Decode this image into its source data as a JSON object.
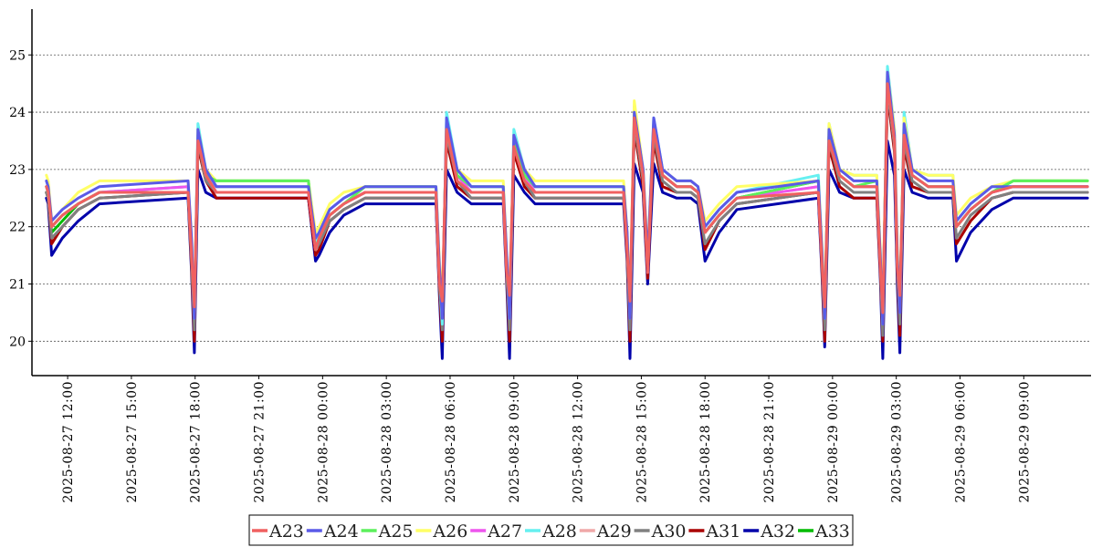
{
  "chart_data": {
    "type": "line",
    "title": "",
    "xlabel": "",
    "ylabel": "",
    "grid": {
      "y": true,
      "x": false,
      "style": "dotted"
    },
    "legend_position": "bottom",
    "ylim": [
      19.4,
      25.8
    ],
    "yticks": [
      20,
      21,
      22,
      23,
      24,
      25
    ],
    "xlim": [
      "2025-08-27 10:45",
      "2025-08-29 12:10"
    ],
    "xticks": [
      "2025-08-27  12:00",
      "2025-08-27  15:00",
      "2025-08-27  18:00",
      "2025-08-27  21:00",
      "2025-08-28  00:00",
      "2025-08-28  03:00",
      "2025-08-28  06:00",
      "2025-08-28  09:00",
      "2025-08-28  12:00",
      "2025-08-28  15:00",
      "2025-08-28  18:00",
      "2025-08-28  21:00",
      "2025-08-29  00:00",
      "2025-08-29  03:00",
      "2025-08-29  06:00",
      "2025-08-29  09:00"
    ],
    "x": [
      "2025-08-27 11:00",
      "2025-08-27 11:05",
      "2025-08-27 11:15",
      "2025-08-27 11:45",
      "2025-08-27 12:30",
      "2025-08-27 13:30",
      "2025-08-27 17:40",
      "2025-08-27 17:50",
      "2025-08-27 17:58",
      "2025-08-27 18:08",
      "2025-08-27 18:30",
      "2025-08-27 19:00",
      "2025-08-27 23:20",
      "2025-08-27 23:40",
      "2025-08-27 23:50",
      "2025-08-28 00:20",
      "2025-08-28 01:00",
      "2025-08-28 02:00",
      "2025-08-28 05:20",
      "2025-08-28 05:30",
      "2025-08-28 05:38",
      "2025-08-28 05:50",
      "2025-08-28 06:20",
      "2025-08-28 07:00",
      "2025-08-28 08:30",
      "2025-08-28 08:40",
      "2025-08-28 08:48",
      "2025-08-28 09:00",
      "2025-08-28 09:30",
      "2025-08-28 10:00",
      "2025-08-28 14:10",
      "2025-08-28 14:20",
      "2025-08-28 14:28",
      "2025-08-28 14:40",
      "2025-08-28 15:05",
      "2025-08-28 15:18",
      "2025-08-28 15:35",
      "2025-08-28 16:00",
      "2025-08-28 16:40",
      "2025-08-28 17:20",
      "2025-08-28 17:40",
      "2025-08-28 18:00",
      "2025-08-28 18:40",
      "2025-08-28 19:30",
      "2025-08-28 23:20",
      "2025-08-28 23:30",
      "2025-08-28 23:38",
      "2025-08-28 23:50",
      "2025-08-29 00:20",
      "2025-08-29 01:00",
      "2025-08-29 02:05",
      "2025-08-29 02:15",
      "2025-08-29 02:22",
      "2025-08-29 02:35",
      "2025-08-29 02:55",
      "2025-08-29 03:03",
      "2025-08-29 03:10",
      "2025-08-29 03:22",
      "2025-08-29 03:45",
      "2025-08-29 04:30",
      "2025-08-29 05:40",
      "2025-08-29 05:50",
      "2025-08-29 06:30",
      "2025-08-29 07:30",
      "2025-08-29 08:30",
      "2025-08-29 12:00"
    ],
    "series": [
      {
        "name": "A23",
        "color": "#f06060",
        "values": [
          22.7,
          22.6,
          22.0,
          22.2,
          22.4,
          22.6,
          22.6,
          21.5,
          20.6,
          23.5,
          22.9,
          22.6,
          22.6,
          21.6,
          21.8,
          22.2,
          22.4,
          22.6,
          22.6,
          21.0,
          20.7,
          23.7,
          22.8,
          22.6,
          22.6,
          21.2,
          20.8,
          23.4,
          22.8,
          22.6,
          22.6,
          21.6,
          20.7,
          23.9,
          22.9,
          21.2,
          23.7,
          22.9,
          22.7,
          22.7,
          22.6,
          21.9,
          22.2,
          22.5,
          22.6,
          21.4,
          20.6,
          23.5,
          22.9,
          22.7,
          22.7,
          21.3,
          20.5,
          24.5,
          23.5,
          21.3,
          20.8,
          23.6,
          22.9,
          22.7,
          22.7,
          22.0,
          22.3,
          22.6,
          22.7,
          22.7
        ]
      },
      {
        "name": "A24",
        "color": "#5a5ae8",
        "values": [
          22.8,
          22.7,
          22.1,
          22.3,
          22.5,
          22.7,
          22.8,
          21.8,
          20.4,
          23.7,
          23.0,
          22.7,
          22.7,
          21.8,
          21.9,
          22.3,
          22.5,
          22.7,
          22.7,
          21.3,
          20.4,
          23.9,
          23.0,
          22.7,
          22.7,
          21.5,
          20.4,
          23.6,
          23.0,
          22.7,
          22.7,
          21.9,
          20.4,
          24.0,
          23.0,
          21.4,
          23.9,
          23.0,
          22.8,
          22.8,
          22.7,
          22.0,
          22.3,
          22.6,
          22.8,
          21.6,
          20.4,
          23.7,
          23.0,
          22.8,
          22.8,
          21.5,
          20.3,
          24.7,
          23.6,
          21.5,
          20.5,
          23.8,
          23.0,
          22.8,
          22.8,
          22.1,
          22.4,
          22.7,
          22.7,
          22.7
        ]
      },
      {
        "name": "A25",
        "color": "#5cf05c",
        "values": [
          22.7,
          22.6,
          22.0,
          22.2,
          22.4,
          22.6,
          22.6,
          21.6,
          20.5,
          23.6,
          22.9,
          22.8,
          22.8,
          21.6,
          21.8,
          22.2,
          22.4,
          22.7,
          22.7,
          21.1,
          20.5,
          23.8,
          22.9,
          22.7,
          22.7,
          21.3,
          20.5,
          23.5,
          22.9,
          22.7,
          22.7,
          21.7,
          20.5,
          23.9,
          22.9,
          21.3,
          23.8,
          22.9,
          22.7,
          22.7,
          22.6,
          21.9,
          22.2,
          22.5,
          22.8,
          21.5,
          20.5,
          23.6,
          22.9,
          22.7,
          22.8,
          21.4,
          20.4,
          24.6,
          23.5,
          21.4,
          20.6,
          23.7,
          22.9,
          22.7,
          22.7,
          22.0,
          22.3,
          22.6,
          22.8,
          22.8
        ]
      },
      {
        "name": "A26",
        "color": "#ffff66",
        "values": [
          22.9,
          22.8,
          22.1,
          22.3,
          22.6,
          22.8,
          22.8,
          21.8,
          20.6,
          23.7,
          23.0,
          22.8,
          22.8,
          21.9,
          22.0,
          22.4,
          22.6,
          22.7,
          22.7,
          21.4,
          20.6,
          23.8,
          23.0,
          22.8,
          22.8,
          21.5,
          20.6,
          23.6,
          23.0,
          22.8,
          22.8,
          21.9,
          20.6,
          24.2,
          23.0,
          21.5,
          23.8,
          23.0,
          22.8,
          22.8,
          22.7,
          22.1,
          22.4,
          22.7,
          22.8,
          21.7,
          20.6,
          23.8,
          23.0,
          22.9,
          22.9,
          21.6,
          20.6,
          24.7,
          23.7,
          21.6,
          20.7,
          23.9,
          23.0,
          22.9,
          22.9,
          22.2,
          22.5,
          22.7,
          22.8,
          22.8
        ]
      },
      {
        "name": "A27",
        "color": "#ee55ee",
        "values": [
          22.7,
          22.6,
          22.0,
          22.2,
          22.4,
          22.6,
          22.7,
          21.6,
          20.5,
          23.6,
          22.9,
          22.6,
          22.6,
          21.6,
          21.8,
          22.2,
          22.4,
          22.6,
          22.6,
          21.1,
          20.5,
          23.8,
          22.9,
          22.6,
          22.6,
          21.3,
          20.5,
          23.5,
          22.9,
          22.6,
          22.6,
          21.7,
          20.5,
          23.9,
          22.9,
          21.3,
          23.8,
          22.9,
          22.7,
          22.7,
          22.6,
          21.9,
          22.2,
          22.5,
          22.7,
          21.5,
          20.5,
          23.6,
          22.9,
          22.7,
          22.7,
          21.4,
          20.4,
          24.6,
          23.5,
          21.4,
          20.6,
          23.7,
          22.9,
          22.7,
          22.7,
          22.0,
          22.3,
          22.6,
          22.7,
          22.7
        ]
      },
      {
        "name": "A28",
        "color": "#66f0f0",
        "values": [
          22.7,
          22.6,
          22.0,
          22.2,
          22.4,
          22.6,
          22.7,
          21.7,
          20.4,
          23.8,
          23.0,
          22.7,
          22.7,
          21.7,
          21.9,
          22.3,
          22.5,
          22.7,
          22.7,
          21.2,
          20.3,
          24.0,
          23.0,
          22.7,
          22.7,
          21.4,
          20.4,
          23.7,
          23.0,
          22.7,
          22.7,
          21.8,
          20.4,
          24.1,
          23.0,
          21.4,
          23.9,
          23.0,
          22.8,
          22.8,
          22.7,
          22.0,
          22.3,
          22.6,
          22.9,
          21.6,
          20.4,
          23.8,
          23.0,
          22.9,
          22.9,
          21.5,
          20.3,
          24.8,
          23.7,
          21.5,
          20.5,
          24.0,
          23.0,
          22.9,
          22.9,
          22.1,
          22.4,
          22.7,
          22.7,
          22.7
        ]
      },
      {
        "name": "A29",
        "color": "#f0a8a8",
        "values": [
          22.7,
          22.6,
          22.0,
          22.2,
          22.4,
          22.6,
          22.7,
          21.6,
          20.6,
          23.6,
          22.9,
          22.7,
          22.7,
          21.6,
          21.8,
          22.2,
          22.4,
          22.6,
          22.6,
          21.1,
          20.6,
          23.7,
          22.9,
          22.6,
          22.6,
          21.3,
          20.6,
          23.5,
          22.9,
          22.6,
          22.6,
          21.7,
          20.6,
          23.9,
          22.9,
          21.3,
          23.8,
          22.9,
          22.7,
          22.7,
          22.6,
          21.9,
          22.2,
          22.5,
          22.7,
          21.5,
          20.6,
          23.6,
          22.9,
          22.7,
          22.7,
          21.4,
          20.5,
          24.5,
          23.5,
          21.4,
          20.7,
          23.7,
          22.9,
          22.7,
          22.7,
          22.0,
          22.3,
          22.6,
          22.7,
          22.7
        ]
      },
      {
        "name": "A30",
        "color": "#808080",
        "values": [
          22.6,
          22.5,
          21.8,
          22.0,
          22.3,
          22.5,
          22.6,
          21.4,
          20.2,
          23.5,
          22.8,
          22.6,
          22.6,
          21.6,
          21.7,
          22.1,
          22.3,
          22.5,
          22.5,
          21.0,
          20.2,
          23.6,
          22.8,
          22.5,
          22.5,
          21.2,
          20.2,
          23.4,
          22.8,
          22.5,
          22.5,
          21.6,
          20.2,
          23.8,
          22.8,
          21.2,
          23.6,
          22.8,
          22.6,
          22.6,
          22.5,
          21.7,
          22.1,
          22.4,
          22.6,
          21.4,
          20.2,
          23.5,
          22.8,
          22.6,
          22.6,
          21.3,
          20.1,
          24.4,
          23.4,
          21.3,
          20.3,
          23.5,
          22.8,
          22.6,
          22.6,
          21.8,
          22.2,
          22.5,
          22.6,
          22.6
        ]
      },
      {
        "name": "A31",
        "color": "#aa0000",
        "values": [
          22.6,
          22.5,
          21.7,
          22.0,
          22.3,
          22.5,
          22.6,
          21.3,
          20.0,
          23.4,
          22.8,
          22.5,
          22.5,
          21.5,
          21.6,
          22.1,
          22.3,
          22.5,
          22.5,
          20.9,
          20.0,
          23.5,
          22.7,
          22.5,
          22.5,
          21.1,
          20.0,
          23.3,
          22.7,
          22.5,
          22.5,
          21.5,
          20.0,
          23.7,
          22.7,
          21.1,
          23.5,
          22.7,
          22.6,
          22.6,
          22.5,
          21.6,
          22.1,
          22.4,
          22.6,
          21.3,
          20.0,
          23.4,
          22.7,
          22.5,
          22.5,
          21.2,
          20.0,
          24.3,
          23.3,
          21.2,
          20.1,
          23.4,
          22.7,
          22.6,
          22.6,
          21.7,
          22.1,
          22.5,
          22.6,
          22.6
        ]
      },
      {
        "name": "A32",
        "color": "#0000aa",
        "values": [
          22.5,
          22.4,
          21.5,
          21.8,
          22.1,
          22.4,
          22.5,
          21.2,
          19.8,
          23.0,
          22.6,
          22.5,
          22.5,
          21.4,
          21.5,
          21.9,
          22.2,
          22.4,
          22.4,
          20.8,
          19.7,
          23.0,
          22.6,
          22.4,
          22.4,
          21.0,
          19.7,
          22.9,
          22.6,
          22.4,
          22.4,
          21.4,
          19.7,
          23.1,
          22.6,
          21.0,
          23.1,
          22.6,
          22.5,
          22.5,
          22.4,
          21.4,
          21.9,
          22.3,
          22.5,
          21.2,
          19.9,
          23.0,
          22.6,
          22.5,
          22.5,
          21.1,
          19.7,
          23.5,
          22.9,
          21.0,
          19.8,
          23.0,
          22.6,
          22.5,
          22.5,
          21.4,
          21.9,
          22.3,
          22.5,
          22.5
        ]
      },
      {
        "name": "A33",
        "color": "#00bb00",
        "values": [
          22.6,
          22.5,
          21.9,
          22.1,
          22.4,
          22.6,
          22.6,
          21.5,
          20.4,
          23.5,
          22.9,
          22.8,
          22.8,
          21.6,
          21.8,
          22.2,
          22.4,
          22.6,
          22.6,
          21.1,
          20.4,
          23.7,
          22.9,
          22.6,
          22.6,
          21.3,
          20.4,
          23.4,
          22.9,
          22.6,
          22.6,
          21.7,
          20.4,
          23.8,
          22.9,
          21.3,
          23.7,
          22.9,
          22.7,
          22.7,
          22.6,
          21.9,
          22.2,
          22.5,
          22.8,
          21.5,
          20.4,
          23.6,
          22.9,
          22.7,
          22.7,
          21.4,
          20.3,
          24.5,
          23.5,
          21.4,
          20.5,
          23.7,
          22.9,
          22.7,
          22.7,
          22.0,
          22.3,
          22.6,
          22.8,
          22.8
        ]
      }
    ]
  }
}
